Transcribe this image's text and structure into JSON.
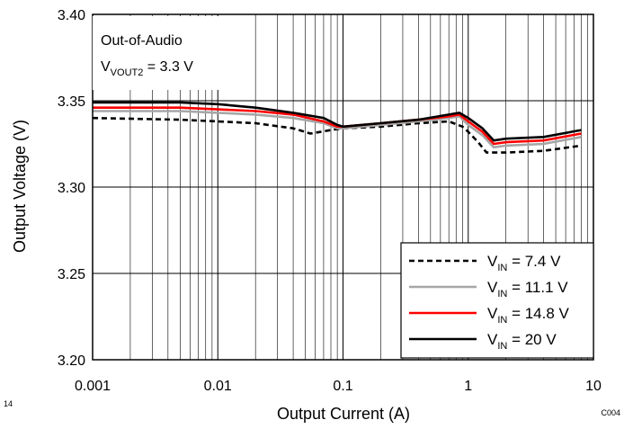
{
  "chart_data": {
    "type": "line",
    "xlabel": "Output Current (A)",
    "ylabel": "Output Voltage (V)",
    "xscale": "log",
    "xlim": [
      0.001,
      10
    ],
    "ylim": [
      3.2,
      3.4
    ],
    "x_ticks": [
      "0.001",
      "0.01",
      "0.1",
      "1",
      "10"
    ],
    "y_ticks": [
      "3.20",
      "3.25",
      "3.30",
      "3.35",
      "3.40"
    ],
    "grid": true,
    "legend_position": "bottom-right",
    "annotation": {
      "line1": "Out-of-Audio",
      "line2_main": "V",
      "line2_sub": "VOUT2",
      "line2_rest": " = 3.3 V"
    },
    "corner_labels": {
      "left": "14",
      "right": "C004"
    },
    "series": [
      {
        "name": "V_IN = 7.4 V",
        "legend_main": "V",
        "legend_sub": "IN",
        "legend_rest": " = 7.4 V",
        "color": "#000000",
        "style": "dashed",
        "points": [
          [
            0.001,
            3.34
          ],
          [
            0.005,
            3.339
          ],
          [
            0.01,
            3.338
          ],
          [
            0.02,
            3.337
          ],
          [
            0.04,
            3.334
          ],
          [
            0.055,
            3.331
          ],
          [
            0.08,
            3.333
          ],
          [
            0.1,
            3.334
          ],
          [
            0.2,
            3.335
          ],
          [
            0.4,
            3.337
          ],
          [
            0.7,
            3.338
          ],
          [
            0.9,
            3.335
          ],
          [
            1.0,
            3.332
          ],
          [
            1.2,
            3.326
          ],
          [
            1.4,
            3.32
          ],
          [
            2.0,
            3.32
          ],
          [
            4.0,
            3.321
          ],
          [
            8.0,
            3.324
          ]
        ]
      },
      {
        "name": "V_IN = 11.1 V",
        "legend_main": "V",
        "legend_sub": "IN",
        "legend_rest": " = 11.1 V",
        "color": "#a6a6a6",
        "style": "solid",
        "points": [
          [
            0.001,
            3.344
          ],
          [
            0.005,
            3.344
          ],
          [
            0.01,
            3.343
          ],
          [
            0.02,
            3.342
          ],
          [
            0.04,
            3.34
          ],
          [
            0.07,
            3.337
          ],
          [
            0.09,
            3.334
          ],
          [
            0.1,
            3.334
          ],
          [
            0.2,
            3.336
          ],
          [
            0.4,
            3.338
          ],
          [
            0.7,
            3.34
          ],
          [
            0.85,
            3.341
          ],
          [
            1.0,
            3.336
          ],
          [
            1.3,
            3.33
          ],
          [
            1.6,
            3.323
          ],
          [
            2.0,
            3.324
          ],
          [
            4.0,
            3.325
          ],
          [
            8.0,
            3.329
          ]
        ]
      },
      {
        "name": "V_IN = 14.8 V",
        "legend_main": "V",
        "legend_sub": "IN",
        "legend_rest": " = 14.8 V",
        "color": "#ff0000",
        "style": "solid",
        "points": [
          [
            0.001,
            3.346
          ],
          [
            0.005,
            3.346
          ],
          [
            0.01,
            3.345
          ],
          [
            0.02,
            3.344
          ],
          [
            0.04,
            3.342
          ],
          [
            0.07,
            3.338
          ],
          [
            0.09,
            3.335
          ],
          [
            0.1,
            3.335
          ],
          [
            0.2,
            3.337
          ],
          [
            0.4,
            3.339
          ],
          [
            0.7,
            3.341
          ],
          [
            0.85,
            3.342
          ],
          [
            1.0,
            3.338
          ],
          [
            1.3,
            3.332
          ],
          [
            1.6,
            3.325
          ],
          [
            2.0,
            3.326
          ],
          [
            4.0,
            3.327
          ],
          [
            8.0,
            3.331
          ]
        ]
      },
      {
        "name": "V_IN = 20 V",
        "legend_main": "V",
        "legend_sub": "IN",
        "legend_rest": " = 20 V",
        "color": "#000000",
        "style": "solid",
        "points": [
          [
            0.001,
            3.349
          ],
          [
            0.005,
            3.349
          ],
          [
            0.01,
            3.348
          ],
          [
            0.02,
            3.346
          ],
          [
            0.04,
            3.343
          ],
          [
            0.07,
            3.34
          ],
          [
            0.09,
            3.336
          ],
          [
            0.1,
            3.335
          ],
          [
            0.2,
            3.337
          ],
          [
            0.4,
            3.339
          ],
          [
            0.7,
            3.342
          ],
          [
            0.85,
            3.343
          ],
          [
            1.0,
            3.34
          ],
          [
            1.3,
            3.334
          ],
          [
            1.6,
            3.327
          ],
          [
            2.0,
            3.328
          ],
          [
            4.0,
            3.329
          ],
          [
            8.0,
            3.333
          ]
        ]
      }
    ]
  }
}
